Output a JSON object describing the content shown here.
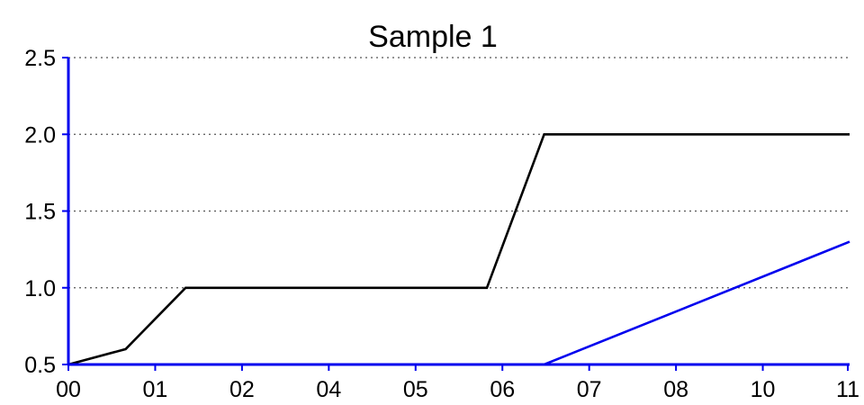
{
  "chart_data": {
    "type": "line",
    "title": "Sample 1",
    "xlabel": "",
    "ylabel": "",
    "x_tick_labels": [
      "00",
      "01",
      "02",
      "04",
      "05",
      "06",
      "07",
      "08",
      "10",
      "11"
    ],
    "y_tick_labels": [
      "0.5",
      "1.0",
      "1.5",
      "2.0",
      "2.5"
    ],
    "xlim": [
      0,
      11.2
    ],
    "ylim": [
      0.5,
      2.5
    ],
    "grid": "horizontal dotted",
    "legend": "none",
    "series": [
      {
        "color": "#000000",
        "x": [
          0,
          0.82,
          1.68,
          6.0,
          6.82,
          11.2
        ],
        "y": [
          0.5,
          0.6,
          1.0,
          1.0,
          2.0,
          2.0
        ]
      },
      {
        "color": "#0000ee",
        "x": [
          0,
          6.82,
          11.2
        ],
        "y": [
          0.5,
          0.5,
          1.3
        ]
      }
    ],
    "axis_color": "#0000ee"
  }
}
